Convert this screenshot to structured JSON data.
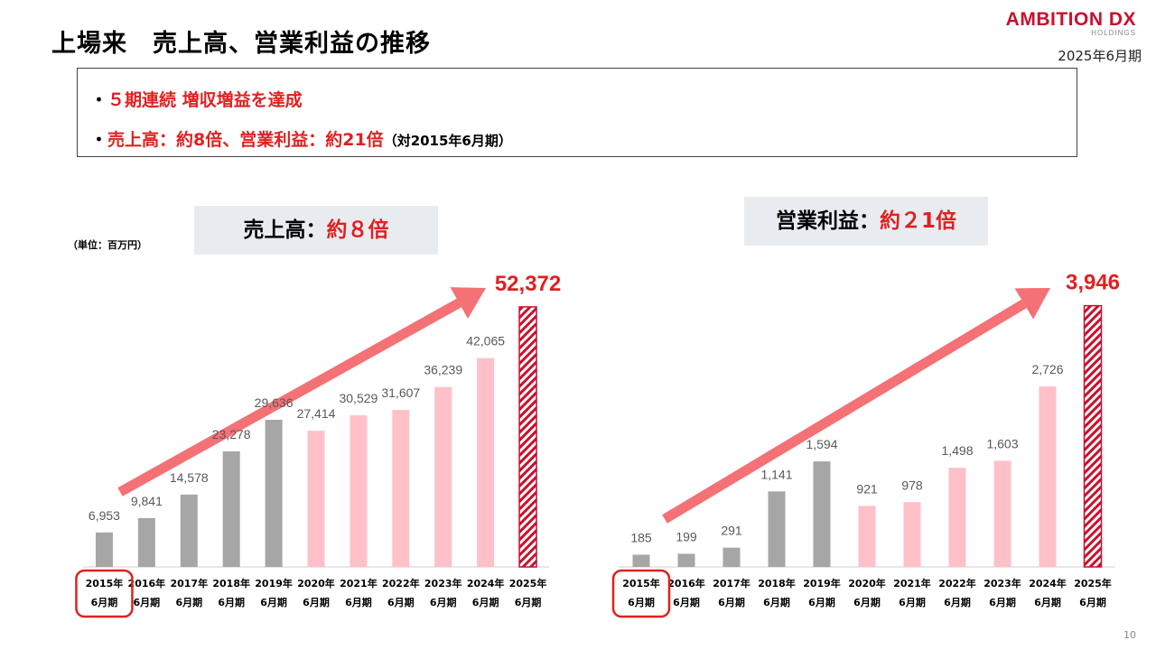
{
  "header": {
    "title": "上場来　売上高、営業利益の推移",
    "logo_text": "AMBITION DX",
    "logo_sub": "HOLDINGS",
    "period": "2025年6月期"
  },
  "summary": {
    "bullet": "・",
    "line1": "５期連続 増収増益を達成",
    "line2": "売上高：約8倍、営業利益：約21倍",
    "line2_note": "（対2015年6月期）"
  },
  "sales_headline": {
    "label": "売上高：",
    "highlight": "約８倍"
  },
  "profit_headline": {
    "label": "営業利益：",
    "highlight": "約２1倍"
  },
  "unit_label": "（単位：百万円）",
  "page_number": "10",
  "colors": {
    "gray_bar": "#a6a6a6",
    "pink_bar": "#ffc0c8",
    "hatch_red": "#c8102e",
    "arrow": "#f47176",
    "highlight_red": "#e02020"
  },
  "chart_data": [
    {
      "type": "bar",
      "categories": [
        "2015年6月期",
        "2016年6月期",
        "2017年6月期",
        "2018年6月期",
        "2019年6月期",
        "2020年6月期",
        "2021年6月期",
        "2022年6月期",
        "2023年6月期",
        "2024年6月期",
        "2025年6月期"
      ],
      "values": [
        6953,
        9841,
        14578,
        23278,
        29636,
        27414,
        30529,
        31607,
        36239,
        42065,
        52372
      ],
      "labels": [
        "6,953",
        "9,841",
        "14,578",
        "23,278",
        "29,636",
        "27,414",
        "30,529",
        "31,607",
        "36,239",
        "42,065",
        "52,372"
      ],
      "bar_styles": [
        "gray",
        "gray",
        "gray",
        "gray",
        "gray",
        "pink",
        "pink",
        "pink",
        "pink",
        "pink",
        "hatched"
      ],
      "category_year": [
        "2015年",
        "2016年",
        "2017年",
        "2018年",
        "2019年",
        "2020年",
        "2021年",
        "2022年",
        "2023年",
        "2024年",
        "2025年"
      ],
      "category_period": [
        "6月期",
        "6月期",
        "6月期",
        "6月期",
        "6月期",
        "6月期",
        "6月期",
        "6月期",
        "6月期",
        "6月期",
        "6月期"
      ],
      "highlighted_category": 0,
      "emphasized_value_index": 10,
      "ylim": [
        0,
        60000
      ],
      "title": "",
      "xlabel": "",
      "ylabel": ""
    },
    {
      "type": "bar",
      "categories": [
        "2015年6月期",
        "2016年6月期",
        "2017年6月期",
        "2018年6月期",
        "2019年6月期",
        "2020年6月期",
        "2021年6月期",
        "2022年6月期",
        "2023年6月期",
        "2024年6月期",
        "2025年6月期"
      ],
      "values": [
        185,
        199,
        291,
        1141,
        1594,
        921,
        978,
        1498,
        1603,
        2726,
        3946
      ],
      "labels": [
        "185",
        "199",
        "291",
        "1,141",
        "1,594",
        "921",
        "978",
        "1,498",
        "1,603",
        "2,726",
        "3,946"
      ],
      "bar_styles": [
        "gray",
        "gray",
        "gray",
        "gray",
        "gray",
        "pink",
        "pink",
        "pink",
        "pink",
        "pink",
        "hatched"
      ],
      "category_year": [
        "2015年",
        "2016年",
        "2017年",
        "2018年",
        "2019年",
        "2020年",
        "2021年",
        "2022年",
        "2023年",
        "2024年",
        "2025年"
      ],
      "category_period": [
        "6月期",
        "6月期",
        "6月期",
        "6月期",
        "6月期",
        "6月期",
        "6月期",
        "6月期",
        "6月期",
        "6月期",
        "6月期"
      ],
      "highlighted_category": 0,
      "emphasized_value_index": 10,
      "ylim": [
        0,
        4500
      ],
      "title": "",
      "xlabel": "",
      "ylabel": ""
    }
  ]
}
